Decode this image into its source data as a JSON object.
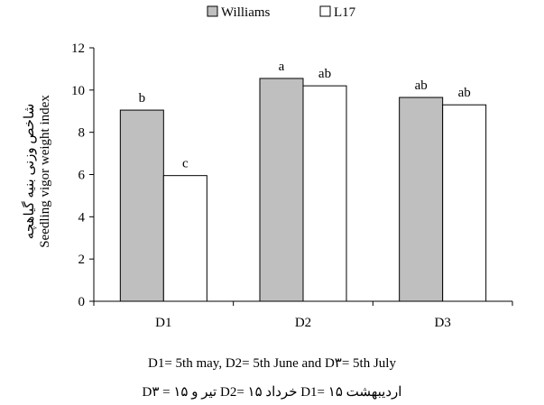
{
  "chart_data": {
    "type": "bar",
    "title": "",
    "ylabel_fa": "شاخص وزنی بنیه گیاهچه",
    "ylabel": "Seedling vigor weight index",
    "xlabel": "",
    "categories": [
      "D1",
      "D2",
      "D3"
    ],
    "ylim": [
      0,
      12
    ],
    "yticks": [
      "0",
      "2",
      "4",
      "6",
      "8",
      "10",
      "12"
    ],
    "series": [
      {
        "name": "Williams",
        "color": "#bfbfbf",
        "values": [
          9.05,
          10.55,
          9.65
        ],
        "letters": [
          "b",
          "a",
          "ab"
        ]
      },
      {
        "name": "L17",
        "color": "#ffffff",
        "values": [
          5.95,
          10.2,
          9.3
        ],
        "letters": [
          "c",
          "ab",
          "ab"
        ]
      }
    ],
    "legend_position": "top-center",
    "grid": false
  },
  "captions": {
    "english": "D1= 5th may, D2= 5th June and D۳= 5th July",
    "persian": "D۳ = ۱۵ تیر و D2= ۱۵ خرداد D1= ۱۵ اردیبهشت"
  }
}
